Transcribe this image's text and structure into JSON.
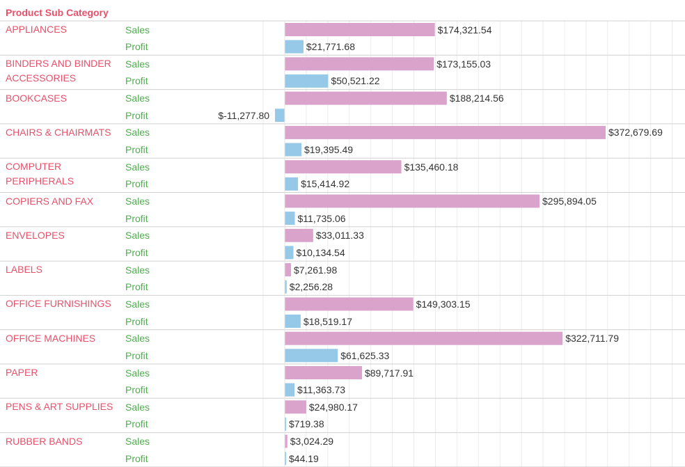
{
  "header": "Product Sub Category",
  "colors": {
    "sales": "#d9a3cc",
    "profit": "#96c8e8",
    "category_text": "#e8506a",
    "measure_text": "#4cae4c"
  },
  "chart_data": {
    "type": "bar",
    "orientation": "horizontal",
    "row_dimension": "Product Sub Category",
    "measures": [
      "Sales",
      "Profit"
    ],
    "xlim": [
      -45000,
      450000
    ],
    "grid": true,
    "categories": [
      "APPLIANCES",
      "BINDERS AND BINDER ACCESSORIES",
      "BOOKCASES",
      "CHAIRS & CHAIRMATS",
      "COMPUTER PERIPHERALS",
      "COPIERS AND FAX",
      "ENVELOPES",
      "LABELS",
      "OFFICE FURNISHINGS",
      "OFFICE MACHINES",
      "PAPER",
      "PENS & ART SUPPLIES",
      "RUBBER BANDS"
    ],
    "series": [
      {
        "name": "Sales",
        "values": [
          174321.54,
          173155.03,
          188214.56,
          372679.69,
          135460.18,
          295894.05,
          33011.33,
          7261.98,
          149303.15,
          322711.79,
          89717.91,
          24980.17,
          3024.29
        ],
        "labels": [
          "$174,321.54",
          "$173,155.03",
          "$188,214.56",
          "$372,679.69",
          "$135,460.18",
          "$295,894.05",
          "$33,011.33",
          "$7,261.98",
          "$149,303.15",
          "$322,711.79",
          "$89,717.91",
          "$24,980.17",
          "$3,024.29"
        ]
      },
      {
        "name": "Profit",
        "values": [
          21771.68,
          50521.22,
          -11277.8,
          19395.49,
          15414.92,
          11735.06,
          10134.54,
          2256.28,
          18519.17,
          61625.33,
          11363.73,
          719.38,
          44.19
        ],
        "labels": [
          "$21,771.68",
          "$50,521.22",
          "$-11,277.80",
          "$19,395.49",
          "$15,414.92",
          "$11,735.06",
          "$10,134.54",
          "$2,256.28",
          "$18,519.17",
          "$61,625.33",
          "$11,363.73",
          "$719.38",
          "$44.19"
        ]
      }
    ]
  }
}
